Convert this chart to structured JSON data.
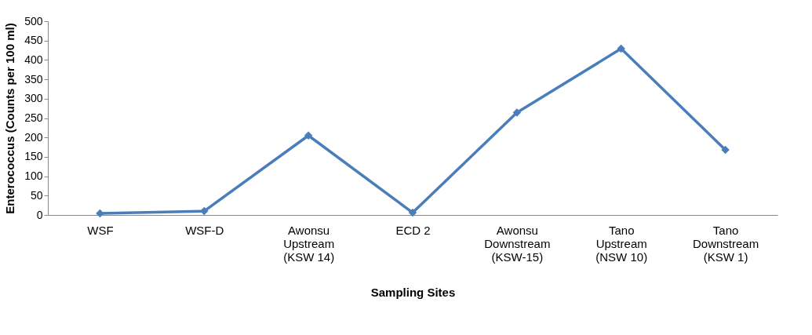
{
  "chart_data": {
    "type": "line",
    "xlabel": "Sampling Sites",
    "ylabel": "Enterococcus (Counts per 100 ml)",
    "categories": [
      "WSF",
      "WSF-D",
      "Awonsu\nUpstream\n(KSW 14)",
      "ECD 2",
      "Awonsu\nDownstream\n(KSW-15)",
      "Tano\nUpstream\n(NSW 10)",
      "Tano\nDownstream\n(KSW 1)"
    ],
    "series": [
      {
        "color": "#4a7ebb",
        "values": [
          4,
          10,
          205,
          6,
          264,
          429,
          168
        ]
      }
    ],
    "ylim": [
      0,
      500
    ],
    "yticks": [
      0,
      50,
      100,
      150,
      200,
      250,
      300,
      350,
      400,
      450,
      500
    ],
    "grid": false,
    "legend": false,
    "marker": "diamond",
    "line_style": "solid"
  }
}
